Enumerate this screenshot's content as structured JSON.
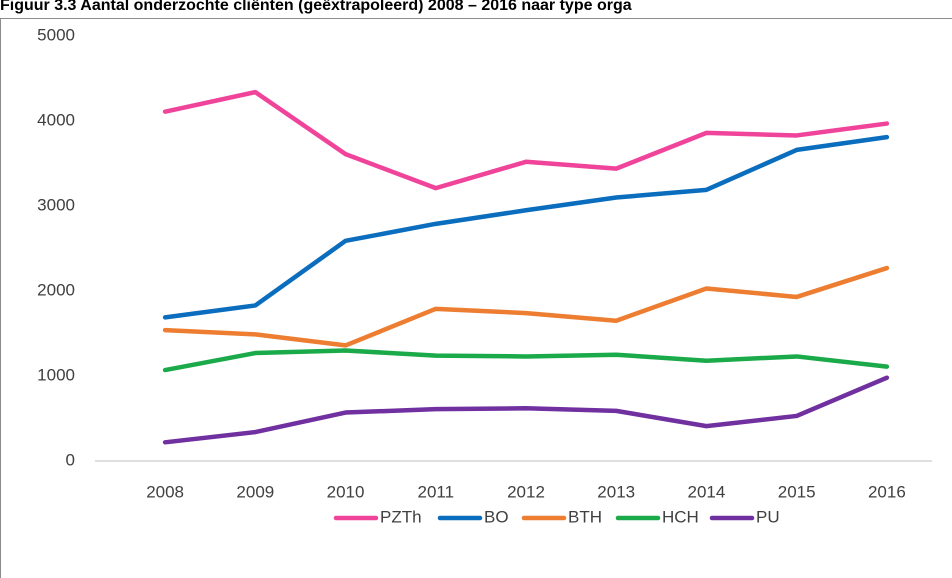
{
  "chart_data": {
    "type": "line",
    "title": "Figuur 3.3 Aantal onderzochte cliënten (geëxtrapoleerd) 2008 – 2016 naar type orga",
    "categories": [
      "2008",
      "2009",
      "2010",
      "2011",
      "2012",
      "2013",
      "2014",
      "2015",
      "2016"
    ],
    "series": [
      {
        "name": "PZTh",
        "color": "#f0449b",
        "values": [
          4110,
          4340,
          3610,
          3210,
          3520,
          3440,
          3860,
          3830,
          3970
        ]
      },
      {
        "name": "BO",
        "color": "#0b6dbd",
        "values": [
          1690,
          1830,
          2590,
          2790,
          2950,
          3100,
          3190,
          3660,
          3810
        ]
      },
      {
        "name": "BTH",
        "color": "#ed7d31",
        "values": [
          1540,
          1490,
          1360,
          1790,
          1740,
          1650,
          2030,
          1930,
          2270
        ]
      },
      {
        "name": "HCH",
        "color": "#1aaa4a",
        "values": [
          1070,
          1270,
          1300,
          1240,
          1230,
          1250,
          1180,
          1230,
          1110
        ]
      },
      {
        "name": "PU",
        "color": "#7030a0",
        "values": [
          220,
          340,
          570,
          610,
          620,
          590,
          410,
          530,
          980
        ]
      }
    ],
    "ylim": [
      0,
      5000
    ],
    "yticks": [
      0,
      1000,
      2000,
      3000,
      4000,
      5000
    ],
    "grid": false,
    "legend": "bottom"
  }
}
